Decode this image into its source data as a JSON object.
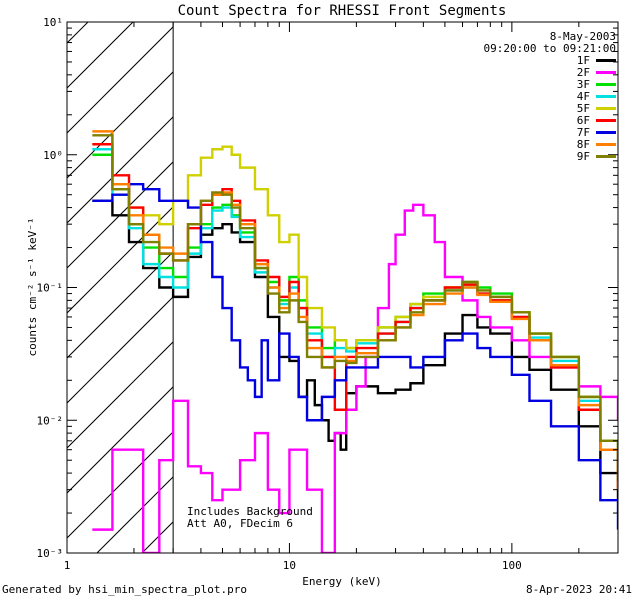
{
  "chart_data": {
    "type": "line",
    "title": "Count Spectra for RHESSI Front Segments",
    "date": "8-May-2003",
    "time_range": "09:20:00 to 09:21:00",
    "xlabel": "Energy (keV)",
    "ylabel": "counts cm⁻² s⁻¹ keV⁻¹",
    "xscale": "log",
    "yscale": "log",
    "xlim": [
      1,
      300
    ],
    "ylim": [
      0.001,
      10
    ],
    "x_tick_labels": [
      "1",
      "10",
      "100"
    ],
    "y_tick_labels": [
      "10⁻³",
      "10⁻²",
      "10⁻¹",
      "10⁰",
      "10¹"
    ],
    "attenuator_line_keV": 3,
    "annotation": [
      "Includes Background",
      "Att A0, FDecim 6"
    ],
    "series": [
      {
        "name": "1F",
        "color": "#000000",
        "x": [
          1.3,
          1.6,
          1.9,
          2.2,
          2.6,
          3.0,
          3.5,
          4.0,
          4.5,
          5.0,
          5.5,
          6.0,
          7.0,
          8.0,
          9.0,
          10.0,
          11.0,
          12.0,
          13.0,
          14.0,
          15.0,
          16.0,
          17.0,
          18.0,
          20.0,
          25.0,
          30.0,
          35.0,
          40.0,
          50.0,
          60.0,
          70.0,
          80.0,
          100.0,
          120.0,
          150.0,
          200.0,
          250.0,
          300.0
        ],
        "y": [
          0.45,
          0.35,
          0.22,
          0.14,
          0.1,
          0.085,
          0.17,
          0.25,
          0.28,
          0.3,
          0.26,
          0.22,
          0.12,
          0.06,
          0.03,
          0.028,
          0.015,
          0.02,
          0.013,
          0.01,
          0.007,
          0.008,
          0.006,
          0.016,
          0.018,
          0.016,
          0.017,
          0.019,
          0.026,
          0.045,
          0.062,
          0.05,
          0.045,
          0.03,
          0.024,
          0.017,
          0.009,
          0.004,
          0.0025
        ]
      },
      {
        "name": "2F",
        "color": "#ff00ff",
        "x": [
          1.3,
          1.6,
          1.9,
          2.2,
          2.6,
          3.0,
          3.5,
          4.0,
          4.5,
          5.0,
          6.0,
          7.0,
          8.0,
          9.0,
          10.0,
          12.0,
          14.0,
          16.0,
          18.0,
          20.0,
          22.0,
          25.0,
          28.0,
          30.0,
          33.0,
          36.0,
          40.0,
          45.0,
          50.0,
          60.0,
          70.0,
          80.0,
          100.0,
          120.0,
          150.0,
          200.0,
          250.0,
          300.0
        ],
        "y": [
          0.0015,
          0.006,
          0.006,
          0.001,
          0.005,
          0.014,
          0.0045,
          0.004,
          0.0025,
          0.003,
          0.005,
          0.008,
          0.003,
          0.002,
          0.006,
          0.003,
          0.001,
          0.008,
          0.012,
          0.018,
          0.03,
          0.07,
          0.15,
          0.25,
          0.38,
          0.42,
          0.35,
          0.22,
          0.12,
          0.08,
          0.06,
          0.05,
          0.04,
          0.03,
          0.025,
          0.018,
          0.015,
          0.01
        ]
      },
      {
        "name": "3F",
        "color": "#00e000",
        "x": [
          1.3,
          1.6,
          1.9,
          2.2,
          2.6,
          3.0,
          3.5,
          4.0,
          4.5,
          5.0,
          5.5,
          6.0,
          7.0,
          8.0,
          9.0,
          10.0,
          11.0,
          12.0,
          14.0,
          16.0,
          18.0,
          20.0,
          25.0,
          30.0,
          35.0,
          40.0,
          50.0,
          60.0,
          70.0,
          80.0,
          100.0,
          120.0,
          150.0,
          200.0,
          250.0,
          300.0
        ],
        "y": [
          1.0,
          0.55,
          0.3,
          0.2,
          0.14,
          0.12,
          0.2,
          0.3,
          0.4,
          0.42,
          0.35,
          0.26,
          0.14,
          0.11,
          0.08,
          0.12,
          0.08,
          0.05,
          0.035,
          0.04,
          0.035,
          0.04,
          0.05,
          0.06,
          0.075,
          0.09,
          0.1,
          0.11,
          0.1,
          0.09,
          0.065,
          0.045,
          0.03,
          0.015,
          0.007,
          0.004
        ]
      },
      {
        "name": "4F",
        "color": "#00e0e0",
        "x": [
          1.3,
          1.6,
          1.9,
          2.2,
          2.6,
          3.0,
          3.5,
          4.0,
          4.5,
          5.0,
          5.5,
          6.0,
          7.0,
          8.0,
          9.0,
          10.0,
          11.0,
          12.0,
          14.0,
          16.0,
          18.0,
          20.0,
          25.0,
          30.0,
          35.0,
          40.0,
          50.0,
          60.0,
          70.0,
          80.0,
          100.0,
          120.0,
          150.0,
          200.0,
          250.0,
          300.0
        ],
        "y": [
          1.1,
          0.5,
          0.28,
          0.15,
          0.12,
          0.1,
          0.18,
          0.28,
          0.38,
          0.4,
          0.34,
          0.24,
          0.13,
          0.1,
          0.075,
          0.1,
          0.07,
          0.045,
          0.03,
          0.035,
          0.033,
          0.038,
          0.045,
          0.055,
          0.07,
          0.08,
          0.095,
          0.1,
          0.09,
          0.08,
          0.06,
          0.042,
          0.028,
          0.014,
          0.006,
          0.0035
        ]
      },
      {
        "name": "5F",
        "color": "#d0d000",
        "x": [
          1.3,
          1.6,
          1.9,
          2.2,
          2.6,
          3.0,
          3.5,
          4.0,
          4.5,
          5.0,
          5.5,
          6.0,
          7.0,
          8.0,
          9.0,
          10.0,
          11.0,
          12.0,
          14.0,
          16.0,
          18.0,
          20.0,
          25.0,
          30.0,
          35.0,
          40.0,
          50.0,
          60.0,
          70.0,
          80.0,
          100.0,
          120.0,
          150.0,
          200.0,
          250.0,
          300.0
        ],
        "y": [
          1.2,
          0.6,
          0.4,
          0.35,
          0.3,
          0.45,
          0.7,
          0.95,
          1.1,
          1.15,
          1.0,
          0.8,
          0.55,
          0.35,
          0.22,
          0.25,
          0.12,
          0.07,
          0.05,
          0.04,
          0.035,
          0.04,
          0.05,
          0.06,
          0.075,
          0.085,
          0.1,
          0.105,
          0.095,
          0.085,
          0.065,
          0.045,
          0.03,
          0.015,
          0.007,
          0.004
        ]
      },
      {
        "name": "6F",
        "color": "#ff0000",
        "x": [
          1.3,
          1.6,
          1.9,
          2.2,
          2.6,
          3.0,
          3.5,
          4.0,
          4.5,
          5.0,
          5.5,
          6.0,
          7.0,
          8.0,
          9.0,
          10.0,
          11.0,
          12.0,
          14.0,
          16.0,
          18.0,
          20.0,
          25.0,
          30.0,
          35.0,
          40.0,
          50.0,
          60.0,
          70.0,
          80.0,
          100.0,
          120.0,
          150.0,
          200.0,
          250.0,
          300.0
        ],
        "y": [
          1.2,
          0.7,
          0.4,
          0.25,
          0.18,
          0.16,
          0.28,
          0.42,
          0.5,
          0.55,
          0.45,
          0.32,
          0.16,
          0.12,
          0.085,
          0.11,
          0.07,
          0.04,
          0.03,
          0.012,
          0.03,
          0.035,
          0.045,
          0.055,
          0.07,
          0.08,
          0.1,
          0.105,
          0.09,
          0.08,
          0.06,
          0.04,
          0.025,
          0.012,
          0.006,
          0.003
        ]
      },
      {
        "name": "7F",
        "color": "#0000e0",
        "x": [
          1.3,
          1.6,
          1.9,
          2.2,
          2.6,
          3.0,
          3.5,
          4.0,
          4.5,
          5.0,
          5.5,
          6.0,
          6.5,
          7.0,
          7.5,
          8.0,
          9.0,
          10.0,
          11.0,
          12.0,
          14.0,
          16.0,
          18.0,
          20.0,
          25.0,
          30.0,
          35.0,
          40.0,
          50.0,
          60.0,
          70.0,
          80.0,
          100.0,
          120.0,
          150.0,
          200.0,
          250.0,
          300.0
        ],
        "y": [
          0.45,
          0.5,
          0.6,
          0.55,
          0.45,
          0.45,
          0.4,
          0.22,
          0.12,
          0.07,
          0.04,
          0.025,
          0.02,
          0.015,
          0.04,
          0.02,
          0.045,
          0.03,
          0.015,
          0.01,
          0.015,
          0.02,
          0.025,
          0.025,
          0.03,
          0.03,
          0.025,
          0.03,
          0.04,
          0.045,
          0.035,
          0.03,
          0.022,
          0.014,
          0.009,
          0.005,
          0.0025,
          0.0015
        ]
      },
      {
        "name": "8F",
        "color": "#ff8000",
        "x": [
          1.3,
          1.6,
          1.9,
          2.2,
          2.6,
          3.0,
          3.5,
          4.0,
          4.5,
          5.0,
          5.5,
          6.0,
          7.0,
          8.0,
          9.0,
          10.0,
          11.0,
          12.0,
          14.0,
          16.0,
          18.0,
          20.0,
          25.0,
          30.0,
          35.0,
          40.0,
          50.0,
          60.0,
          70.0,
          80.0,
          100.0,
          120.0,
          150.0,
          200.0,
          250.0,
          300.0
        ],
        "y": [
          1.5,
          0.6,
          0.35,
          0.25,
          0.2,
          0.18,
          0.3,
          0.45,
          0.5,
          0.52,
          0.42,
          0.3,
          0.15,
          0.1,
          0.07,
          0.09,
          0.06,
          0.035,
          0.025,
          0.03,
          0.028,
          0.032,
          0.04,
          0.05,
          0.062,
          0.075,
          0.09,
          0.1,
          0.088,
          0.078,
          0.058,
          0.04,
          0.026,
          0.013,
          0.006,
          0.003
        ]
      },
      {
        "name": "9F",
        "color": "#808000",
        "x": [
          1.3,
          1.6,
          1.9,
          2.2,
          2.6,
          3.0,
          3.5,
          4.0,
          4.5,
          5.0,
          5.5,
          6.0,
          7.0,
          8.0,
          9.0,
          10.0,
          11.0,
          12.0,
          14.0,
          16.0,
          18.0,
          20.0,
          25.0,
          30.0,
          35.0,
          40.0,
          50.0,
          60.0,
          70.0,
          80.0,
          100.0,
          120.0,
          150.0,
          200.0,
          250.0,
          300.0
        ],
        "y": [
          1.4,
          0.55,
          0.3,
          0.22,
          0.18,
          0.16,
          0.3,
          0.45,
          0.52,
          0.5,
          0.4,
          0.28,
          0.14,
          0.09,
          0.065,
          0.08,
          0.055,
          0.03,
          0.025,
          0.028,
          0.027,
          0.03,
          0.04,
          0.05,
          0.065,
          0.08,
          0.095,
          0.11,
          0.095,
          0.085,
          0.065,
          0.045,
          0.03,
          0.015,
          0.007,
          0.0035
        ]
      }
    ]
  },
  "footer": {
    "generated": "Generated by hsi_min_spectra_plot.pro",
    "timestamp": "8-Apr-2023 20:41"
  }
}
